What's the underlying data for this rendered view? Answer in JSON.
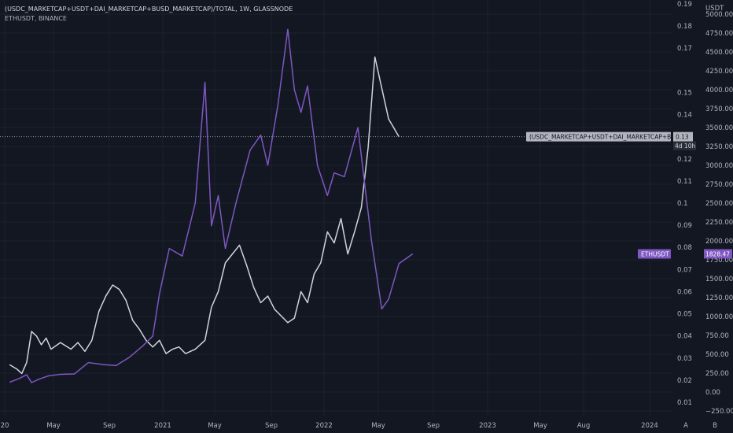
{
  "legend": {
    "line1": "(USDC_MARKETCAP+USDT+DAI_MARKETCAP+BUSD_MARKETCAP)/TOTAL, 1W, GLASSNODE",
    "line2": "ETHUSDT, BINANCE"
  },
  "colors": {
    "background": "#131722",
    "ratio_line": "#d1d4dc",
    "eth_line": "#7e57c2",
    "eth_label_bg": "#7e57c2",
    "ratio_label_bg": "#b2b5be",
    "grid": "#1e222d"
  },
  "bottom_buttons": [
    "A",
    "B"
  ],
  "chart_data": {
    "type": "line",
    "x_ticks": [
      "20",
      "May",
      "Sep",
      "2021",
      "May",
      "Sep",
      "2022",
      "May",
      "Sep",
      "2023",
      "May",
      "Aug",
      "2024"
    ],
    "ratio_axis": {
      "ticks": [
        "0.19",
        "0.18",
        "0.17",
        "0.15",
        "0.14",
        "0.13",
        "0.12",
        "0.11",
        "0.1",
        "0.09",
        "0.08",
        "0.07",
        "0.06",
        "0.05",
        "0.04",
        "0.03",
        "0.02",
        "0.01"
      ],
      "range": [
        0.005,
        0.195
      ]
    },
    "price_axis": {
      "unit": "USDT",
      "ticks": [
        "5000.00",
        "4750.00",
        "4500.00",
        "4250.00",
        "4000.00",
        "3750.00",
        "3500.00",
        "3250.00",
        "3000.00",
        "2750.00",
        "2500.00",
        "2250.00",
        "2000.00",
        "1750.00",
        "1500.00",
        "1250.00",
        "1000.00",
        "750.00",
        "500.00",
        "250.00",
        "0.00",
        "−250.00"
      ],
      "range": [
        -250,
        5000
      ]
    },
    "series": [
      {
        "label_text": "(USDC_MARKETCAP+USDT+DAI_MARKETCAP+BUS...",
        "last_value": "0.13",
        "countdown": "4d 10h",
        "points": [
          [
            "2020-01",
            0.027
          ],
          [
            "2020-02",
            0.025
          ],
          [
            "2020-02",
            0.023
          ],
          [
            "2020-03",
            0.028
          ],
          [
            "2020-03",
            0.042
          ],
          [
            "2020-04",
            0.04
          ],
          [
            "2020-04",
            0.036
          ],
          [
            "2020-05",
            0.039
          ],
          [
            "2020-05",
            0.034
          ],
          [
            "2020-06",
            0.037
          ],
          [
            "2020-07",
            0.034
          ],
          [
            "2020-07",
            0.037
          ],
          [
            "2020-08",
            0.033
          ],
          [
            "2020-08",
            0.038
          ],
          [
            "2020-09",
            0.051
          ],
          [
            "2020-09",
            0.058
          ],
          [
            "2020-10",
            0.063
          ],
          [
            "2020-10",
            0.061
          ],
          [
            "2020-11",
            0.056
          ],
          [
            "2020-11",
            0.047
          ],
          [
            "2020-12",
            0.043
          ],
          [
            "2020-12",
            0.038
          ],
          [
            "2021-01",
            0.035
          ],
          [
            "2021-01",
            0.038
          ],
          [
            "2021-02",
            0.032
          ],
          [
            "2021-02",
            0.034
          ],
          [
            "2021-03",
            0.035
          ],
          [
            "2021-03",
            0.032
          ],
          [
            "2021-04",
            0.034
          ],
          [
            "2021-05",
            0.038
          ],
          [
            "2021-05",
            0.053
          ],
          [
            "2021-06",
            0.06
          ],
          [
            "2021-06",
            0.073
          ],
          [
            "2021-07",
            0.077
          ],
          [
            "2021-07",
            0.081
          ],
          [
            "2021-08",
            0.072
          ],
          [
            "2021-08",
            0.062
          ],
          [
            "2021-09",
            0.055
          ],
          [
            "2021-09",
            0.058
          ],
          [
            "2021-10",
            0.052
          ],
          [
            "2021-10",
            0.049
          ],
          [
            "2021-11",
            0.046
          ],
          [
            "2021-11",
            0.048
          ],
          [
            "2021-12",
            0.06
          ],
          [
            "2021-12",
            0.055
          ],
          [
            "2022-01",
            0.068
          ],
          [
            "2022-01",
            0.073
          ],
          [
            "2022-02",
            0.087
          ],
          [
            "2022-02",
            0.082
          ],
          [
            "2022-03",
            0.093
          ],
          [
            "2022-03",
            0.077
          ],
          [
            "2022-04",
            0.087
          ],
          [
            "2022-04",
            0.098
          ],
          [
            "2022-05",
            0.125
          ],
          [
            "2022-05",
            0.166
          ],
          [
            "2022-06",
            0.152
          ],
          [
            "2022-06",
            0.138
          ],
          [
            "2022-07",
            0.13
          ]
        ]
      },
      {
        "label_text": "ETHUSDT",
        "last_value": "1828.47",
        "points": [
          [
            "2020-01",
            130
          ],
          [
            "2020-02",
            180
          ],
          [
            "2020-03",
            230
          ],
          [
            "2020-03",
            125
          ],
          [
            "2020-04",
            170
          ],
          [
            "2020-05",
            215
          ],
          [
            "2020-06",
            235
          ],
          [
            "2020-07",
            240
          ],
          [
            "2020-08",
            390
          ],
          [
            "2020-09",
            365
          ],
          [
            "2020-10",
            350
          ],
          [
            "2020-11",
            460
          ],
          [
            "2020-12",
            610
          ],
          [
            "2021-01",
            740
          ],
          [
            "2021-01",
            1300
          ],
          [
            "2021-02",
            1900
          ],
          [
            "2021-03",
            1800
          ],
          [
            "2021-04",
            2500
          ],
          [
            "2021-05",
            4100
          ],
          [
            "2021-05",
            2200
          ],
          [
            "2021-06",
            2600
          ],
          [
            "2021-06",
            1900
          ],
          [
            "2021-07",
            2500
          ],
          [
            "2021-08",
            3200
          ],
          [
            "2021-09",
            3400
          ],
          [
            "2021-09",
            3000
          ],
          [
            "2021-10",
            3800
          ],
          [
            "2021-11",
            4800
          ],
          [
            "2021-11",
            4000
          ],
          [
            "2021-12",
            3700
          ],
          [
            "2021-12",
            4050
          ],
          [
            "2022-01",
            3000
          ],
          [
            "2022-02",
            2600
          ],
          [
            "2022-02",
            2900
          ],
          [
            "2022-03",
            2850
          ],
          [
            "2022-04",
            3500
          ],
          [
            "2022-05",
            2000
          ],
          [
            "2022-06",
            1100
          ],
          [
            "2022-06",
            1230
          ],
          [
            "2022-07",
            1700
          ],
          [
            "2022-08",
            1828.47
          ]
        ]
      }
    ]
  }
}
